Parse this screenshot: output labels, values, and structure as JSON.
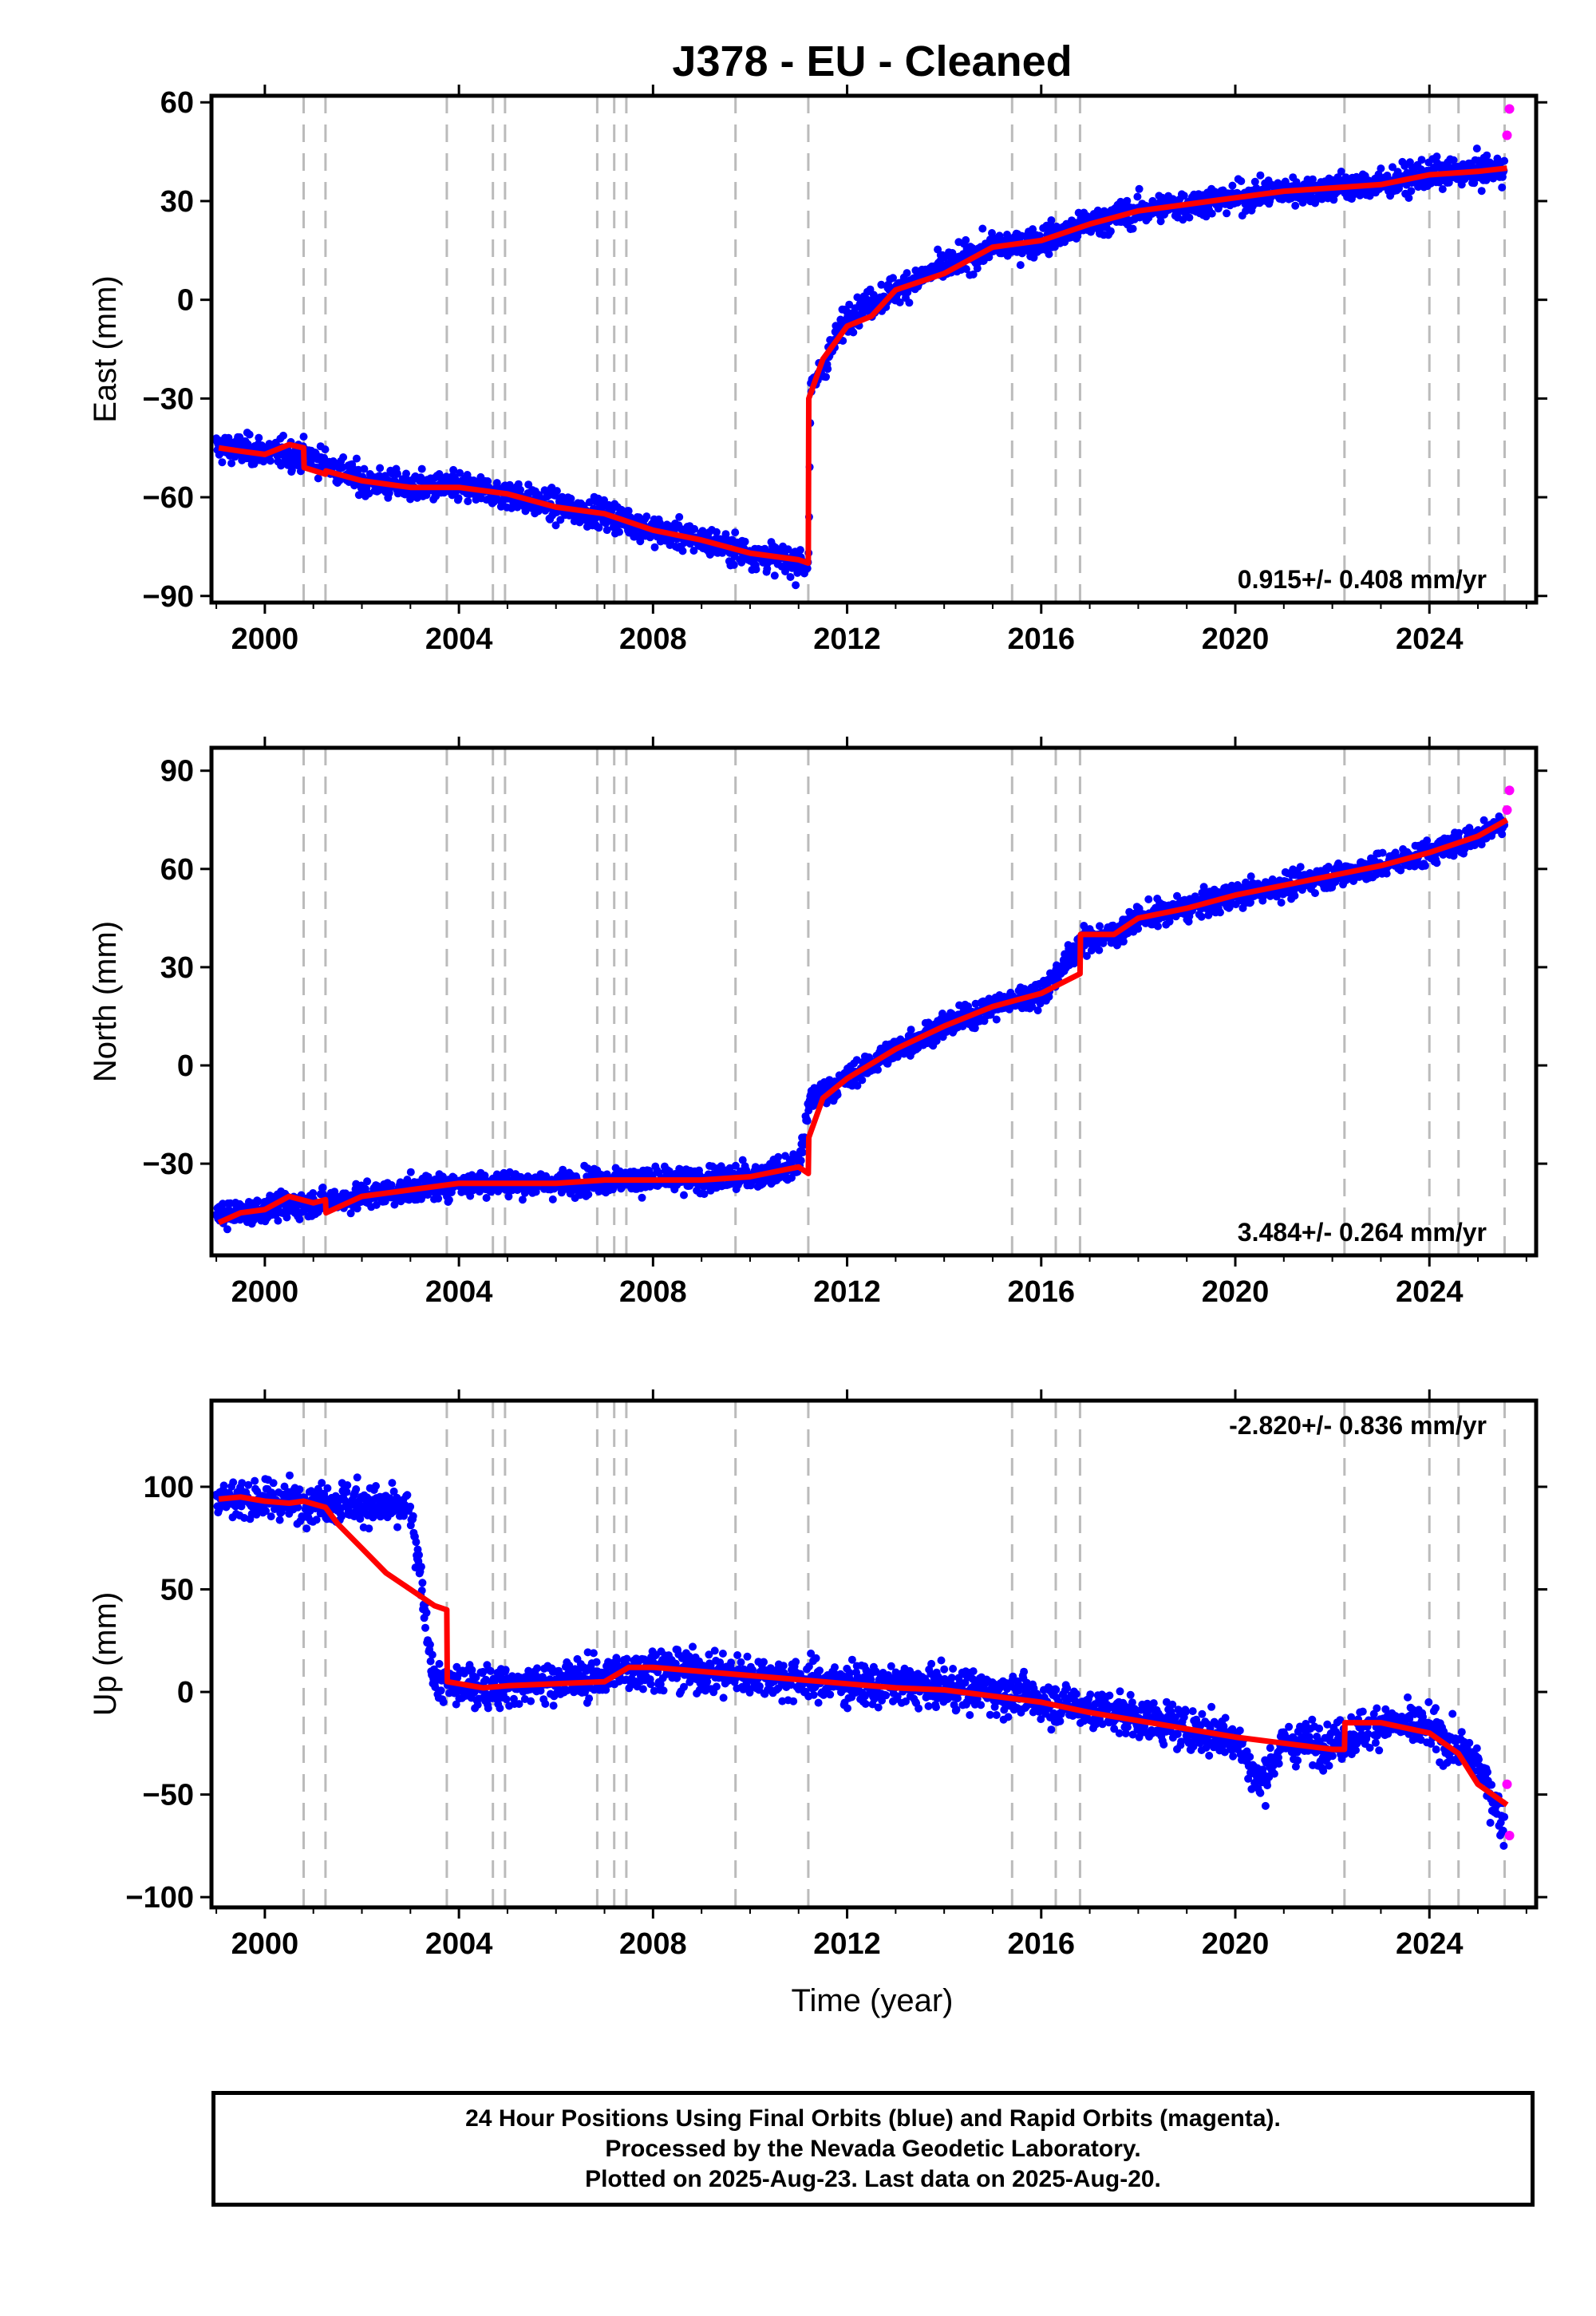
{
  "title": "J378  - EU - Cleaned",
  "xlabel": "Time (year)",
  "xticks": [
    "2000",
    "2004",
    "2008",
    "2012",
    "2016",
    "2020",
    "2024"
  ],
  "colors": {
    "final": "#0000ff",
    "rapid": "#ff00ff",
    "model": "#ff0000",
    "steps": "#bbbbbb",
    "axis": "#000000"
  },
  "caption": {
    "line1": "24 Hour Positions Using Final Orbits (blue) and Rapid Orbits (magenta).",
    "line2": "Processed by the Nevada Geodetic Laboratory.",
    "line3": "Plotted on 2025-Aug-23. Last data on 2025-Aug-20."
  },
  "chart_data": [
    {
      "type": "scatter",
      "ylabel": "East (mm)",
      "rate": "0.915+/- 0.408 mm/yr",
      "xlim": [
        1998.9,
        2026.2
      ],
      "ylim": [
        -92,
        62
      ],
      "yticks": [
        -90,
        -60,
        -30,
        0,
        30,
        60
      ],
      "yticklabels": [
        "−90",
        "−60",
        "−30",
        "0",
        "30",
        "60"
      ],
      "step_epochs": [
        2000.8,
        2001.25,
        2003.75,
        2004.7,
        2004.95,
        2006.85,
        2007.2,
        2007.45,
        2009.7,
        2011.2,
        2015.4,
        2016.3,
        2016.8,
        2022.25,
        2024.0,
        2024.6,
        2025.55
      ],
      "model": {
        "x": [
          1999.05,
          1999.5,
          2000.0,
          2000.5,
          2000.8,
          2000.81,
          2001.25,
          2001.26,
          2002.0,
          2003.0,
          2004.0,
          2005.0,
          2006.0,
          2007.0,
          2008.0,
          2009.0,
          2010.0,
          2011.0,
          2011.2,
          2011.21,
          2011.5,
          2012.0,
          2012.5,
          2013.0,
          2014.0,
          2015.0,
          2016.0,
          2017.0,
          2018.0,
          2019.0,
          2020.0,
          2021.0,
          2022.0,
          2023.0,
          2024.0,
          2025.0,
          2025.6
        ],
        "y": [
          -45,
          -46,
          -47,
          -44,
          -45,
          -51,
          -53,
          -52,
          -55,
          -57,
          -57,
          -59,
          -63,
          -65,
          -70,
          -73,
          -77,
          -79,
          -80,
          -30,
          -18,
          -8,
          -5,
          3,
          8,
          16,
          18,
          23,
          27,
          29,
          31,
          33,
          34,
          35,
          38,
          39,
          40
        ]
      },
      "final": {
        "x": [
          1999.0,
          2000.0,
          2001.0,
          2002.0,
          2003.0,
          2004.0,
          2005.0,
          2006.0,
          2007.0,
          2008.0,
          2009.0,
          2010.0,
          2011.0,
          2011.2,
          2011.25,
          2012.0,
          2013.0,
          2014.0,
          2015.0,
          2016.0,
          2017.0,
          2018.0,
          2019.0,
          2020.0,
          2021.0,
          2022.0,
          2023.0,
          2024.0,
          2025.0,
          2025.55
        ],
        "y": [
          -45,
          -46,
          -48,
          -55,
          -57,
          -57,
          -59,
          -63,
          -65,
          -70,
          -73,
          -77,
          -80,
          -80,
          -28,
          -5,
          3,
          10,
          16,
          18,
          23,
          27,
          29,
          31,
          33,
          34,
          35,
          38,
          39,
          40
        ],
        "scatter": 4
      },
      "rapid": {
        "x": [
          2025.6,
          2025.65
        ],
        "y": [
          50,
          58
        ]
      }
    },
    {
      "type": "scatter",
      "ylabel": "North (mm)",
      "rate": "3.484+/- 0.264 mm/yr",
      "xlim": [
        1998.9,
        2026.2
      ],
      "ylim": [
        -58,
        97
      ],
      "yticks": [
        -30,
        0,
        30,
        60,
        90
      ],
      "yticklabels": [
        "−30",
        "0",
        "30",
        "60",
        "90"
      ],
      "step_epochs": [
        2000.8,
        2001.25,
        2003.75,
        2004.7,
        2004.95,
        2006.85,
        2007.2,
        2007.45,
        2009.7,
        2011.2,
        2015.4,
        2016.3,
        2016.8,
        2022.25,
        2024.0,
        2024.6,
        2025.55
      ],
      "model": {
        "x": [
          1999.05,
          1999.5,
          2000.0,
          2000.5,
          2001.0,
          2001.25,
          2001.26,
          2002.0,
          2003.0,
          2004.0,
          2005.0,
          2006.0,
          2007.0,
          2008.0,
          2009.0,
          2010.0,
          2011.0,
          2011.2,
          2011.21,
          2011.5,
          2012.0,
          2013.0,
          2014.0,
          2015.0,
          2016.0,
          2016.8,
          2016.81,
          2017.5,
          2018.0,
          2019.0,
          2020.0,
          2021.0,
          2022.0,
          2023.0,
          2024.0,
          2025.0,
          2025.6
        ],
        "y": [
          -48,
          -45,
          -44,
          -40,
          -42,
          -41,
          -45,
          -40,
          -38,
          -36,
          -36,
          -36,
          -35,
          -35,
          -35,
          -34,
          -31,
          -33,
          -22,
          -10,
          -4,
          5,
          12,
          18,
          22,
          28,
          40,
          40,
          45,
          48,
          52,
          55,
          58,
          61,
          65,
          70,
          75
        ]
      },
      "final": {
        "x": [
          1999.0,
          2000.0,
          2001.0,
          2002.0,
          2003.0,
          2004.0,
          2005.0,
          2006.0,
          2007.0,
          2008.0,
          2009.0,
          2010.0,
          2011.0,
          2011.25,
          2012.0,
          2013.0,
          2014.0,
          2015.0,
          2016.0,
          2016.85,
          2017.5,
          2018.0,
          2019.0,
          2020.0,
          2021.0,
          2022.0,
          2023.0,
          2024.0,
          2025.0,
          2025.55
        ],
        "y": [
          -46,
          -44,
          -42,
          -40,
          -38,
          -36,
          -36,
          -36,
          -35,
          -35,
          -35,
          -34,
          -31,
          -10,
          -4,
          5,
          12,
          18,
          22,
          38,
          40,
          45,
          48,
          52,
          55,
          58,
          61,
          65,
          70,
          75
        ],
        "scatter": 3.5
      },
      "rapid": {
        "x": [
          2025.6,
          2025.65
        ],
        "y": [
          78,
          84
        ]
      }
    },
    {
      "type": "scatter",
      "ylabel": "Up (mm)",
      "rate": "-2.820+/- 0.836 mm/yr",
      "xlim": [
        1998.9,
        2026.2
      ],
      "ylim": [
        -105,
        142
      ],
      "yticks": [
        -100,
        -50,
        0,
        50,
        100
      ],
      "yticklabels": [
        "−100",
        "−50",
        "0",
        "50",
        "100"
      ],
      "step_epochs": [
        2000.8,
        2001.25,
        2003.75,
        2004.7,
        2004.95,
        2006.85,
        2007.2,
        2007.45,
        2009.7,
        2011.2,
        2015.4,
        2016.3,
        2016.8,
        2022.25,
        2024.0,
        2024.6,
        2025.55
      ],
      "model": {
        "x": [
          1999.05,
          1999.5,
          2000.0,
          2000.5,
          2000.8,
          2001.25,
          2001.5,
          2002.0,
          2002.5,
          2003.0,
          2003.5,
          2003.75,
          2003.76,
          2004.5,
          2005.0,
          2006.0,
          2007.0,
          2007.5,
          2008.0,
          2009.0,
          2010.0,
          2011.0,
          2012.0,
          2013.0,
          2014.0,
          2015.0,
          2016.0,
          2017.0,
          2018.0,
          2019.0,
          2020.0,
          2021.0,
          2022.0,
          2022.25,
          2022.26,
          2023.0,
          2024.0,
          2024.6,
          2025.0,
          2025.6
        ],
        "y": [
          94,
          95,
          93,
          92,
          93,
          90,
          82,
          70,
          58,
          50,
          42,
          40,
          5,
          2,
          3,
          4,
          5,
          12,
          12,
          10,
          8,
          6,
          4,
          2,
          1,
          -2,
          -5,
          -10,
          -14,
          -18,
          -22,
          -25,
          -28,
          -28,
          -15,
          -15,
          -20,
          -30,
          -45,
          -55
        ]
      },
      "final": {
        "x": [
          1999.0,
          2000.0,
          2001.0,
          2002.0,
          2003.0,
          2003.5,
          2004.0,
          2005.0,
          2006.0,
          2007.0,
          2008.0,
          2009.0,
          2010.0,
          2011.0,
          2012.0,
          2013.0,
          2014.0,
          2015.0,
          2016.0,
          2017.0,
          2018.0,
          2019.0,
          2020.0,
          2020.5,
          2021.0,
          2022.0,
          2023.0,
          2024.0,
          2025.0,
          2025.55
        ],
        "y": [
          95,
          93,
          93,
          92,
          88,
          5,
          3,
          3,
          5,
          8,
          12,
          10,
          8,
          6,
          4,
          3,
          2,
          0,
          -4,
          -8,
          -12,
          -18,
          -22,
          -45,
          -25,
          -25,
          -15,
          -18,
          -35,
          -65
        ],
        "scatter": 9
      },
      "rapid": {
        "x": [
          2025.6,
          2025.65
        ],
        "y": [
          -45,
          -70
        ]
      }
    }
  ]
}
